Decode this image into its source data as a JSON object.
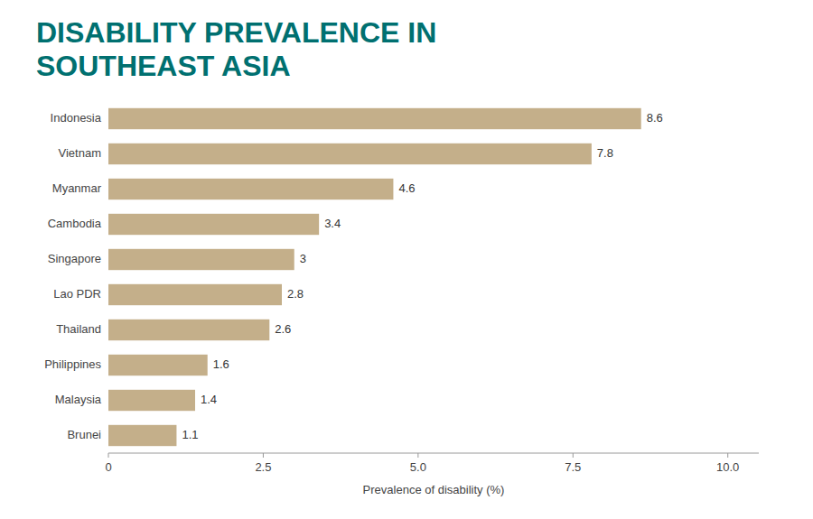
{
  "chart_data": {
    "type": "bar",
    "orientation": "horizontal",
    "title": "DISABILITY PREVALENCE IN SOUTHEAST ASIA",
    "xlabel": "Prevalence of disability (%)",
    "categories": [
      "Indonesia",
      "Vietnam",
      "Myanmar",
      "Cambodia",
      "Singapore",
      "Lao PDR",
      "Thailand",
      "Philippines",
      "Malaysia",
      "Brunei"
    ],
    "values": [
      8.6,
      7.8,
      4.6,
      3.4,
      3.0,
      2.8,
      2.6,
      1.6,
      1.4,
      1.1
    ],
    "color": "#C4AF8A",
    "xlim": [
      0,
      10.5
    ],
    "xticks": [
      0,
      2.5,
      {
        "value": 5,
        "label": "5.0"
      },
      7.5,
      {
        "value": 10,
        "label": "10.0"
      }
    ],
    "data_labels": true,
    "grid": false
  }
}
